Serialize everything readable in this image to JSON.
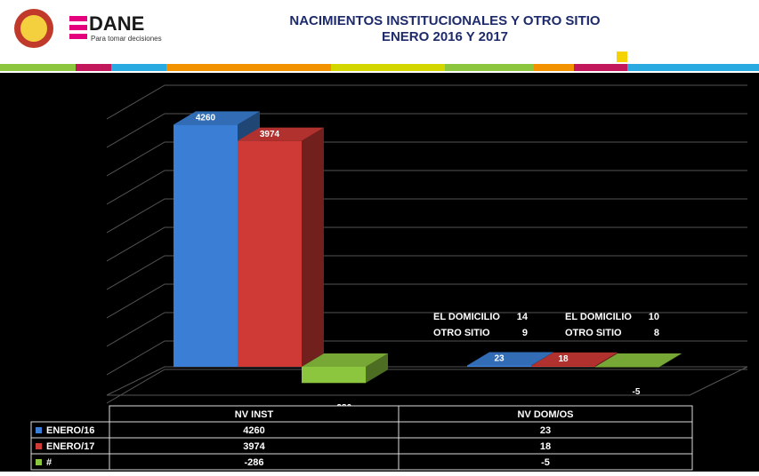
{
  "header": {
    "logo": "DANE",
    "tagline": "Para tomar decisiones"
  },
  "chart_data": {
    "type": "bar",
    "title": "NACIMIENTOS INSTITUCIONALES Y OTRO SITIO",
    "subtitle": "ENERO 2016 Y 2017",
    "categories": [
      "NV INST",
      "NV DOM/OS"
    ],
    "series": [
      {
        "name": "ENERO/16",
        "color": "#3a7fd5",
        "values": [
          4260,
          23
        ]
      },
      {
        "name": "ENERO/17",
        "color": "#d03a36",
        "values": [
          3974,
          18
        ]
      },
      {
        "name": "#",
        "color": "#8cc63f",
        "values": [
          -286,
          -5
        ]
      }
    ],
    "ylim": [
      -500,
      4500
    ],
    "annotations": [
      {
        "label": "EL DOMICILIO",
        "value": 14
      },
      {
        "label": "OTRO SITIO",
        "value": 9
      },
      {
        "label": "EL DOMICILIO",
        "value": 10
      },
      {
        "label": "OTRO SITIO",
        "value": 8
      }
    ]
  }
}
